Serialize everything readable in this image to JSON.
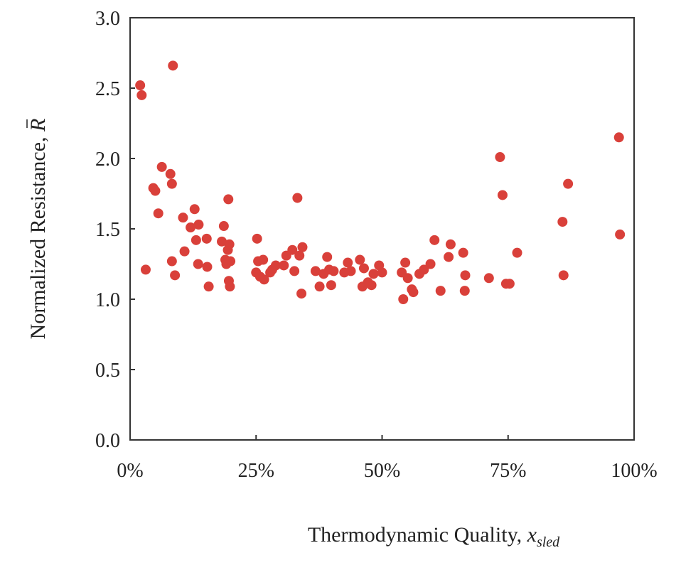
{
  "colors": {
    "marker": "#d9403a",
    "axis": "#333333",
    "text": "#222222"
  },
  "chart_data": {
    "type": "scatter",
    "title": "",
    "xlabel": "Thermodynamic Quality, ",
    "xlabel_var": "x",
    "xlabel_sub": "sled",
    "ylabel": "Normalized Resistance, ",
    "ylabel_var": "R",
    "xlim": [
      0,
      100
    ],
    "ylim": [
      0,
      3.0
    ],
    "x_ticks": [
      0,
      25,
      50,
      75,
      100
    ],
    "x_tick_labels": [
      "0%",
      "25%",
      "50%",
      "75%",
      "100%"
    ],
    "y_ticks": [
      0,
      0.5,
      1.0,
      1.5,
      2.0,
      2.5,
      3.0
    ],
    "y_tick_labels": [
      "0.0",
      "0.5",
      "1.0",
      "1.5",
      "2.0",
      "2.5",
      "3.0"
    ],
    "grid": false,
    "legend": "none",
    "series": [
      {
        "points": [
          [
            2.0,
            2.52
          ],
          [
            2.3,
            2.45
          ],
          [
            3.1,
            1.21
          ],
          [
            8.5,
            2.66
          ],
          [
            6.3,
            1.94
          ],
          [
            8.0,
            1.89
          ],
          [
            8.3,
            1.82
          ],
          [
            4.6,
            1.79
          ],
          [
            5.0,
            1.77
          ],
          [
            5.6,
            1.61
          ],
          [
            10.5,
            1.58
          ],
          [
            12.8,
            1.64
          ],
          [
            12.0,
            1.51
          ],
          [
            13.6,
            1.53
          ],
          [
            13.1,
            1.42
          ],
          [
            15.2,
            1.43
          ],
          [
            18.6,
            1.52
          ],
          [
            19.5,
            1.71
          ],
          [
            8.3,
            1.27
          ],
          [
            8.9,
            1.17
          ],
          [
            10.8,
            1.34
          ],
          [
            13.5,
            1.25
          ],
          [
            15.3,
            1.23
          ],
          [
            15.6,
            1.09
          ],
          [
            18.2,
            1.41
          ],
          [
            18.9,
            1.28
          ],
          [
            19.1,
            1.25
          ],
          [
            19.4,
            1.35
          ],
          [
            19.7,
            1.39
          ],
          [
            19.9,
            1.27
          ],
          [
            19.6,
            1.13
          ],
          [
            19.8,
            1.09
          ],
          [
            25.2,
            1.43
          ],
          [
            25.4,
            1.27
          ],
          [
            25.0,
            1.19
          ],
          [
            25.8,
            1.16
          ],
          [
            26.4,
            1.28
          ],
          [
            26.6,
            1.14
          ],
          [
            27.8,
            1.19
          ],
          [
            28.2,
            1.21
          ],
          [
            28.9,
            1.24
          ],
          [
            30.5,
            1.24
          ],
          [
            31.0,
            1.31
          ],
          [
            32.2,
            1.35
          ],
          [
            32.6,
            1.2
          ],
          [
            33.2,
            1.72
          ],
          [
            33.6,
            1.31
          ],
          [
            34.2,
            1.37
          ],
          [
            34.0,
            1.04
          ],
          [
            36.8,
            1.2
          ],
          [
            37.6,
            1.09
          ],
          [
            38.4,
            1.18
          ],
          [
            39.1,
            1.3
          ],
          [
            39.5,
            1.21
          ],
          [
            39.9,
            1.1
          ],
          [
            40.4,
            1.2
          ],
          [
            42.5,
            1.19
          ],
          [
            43.2,
            1.26
          ],
          [
            43.8,
            1.2
          ],
          [
            45.6,
            1.28
          ],
          [
            46.1,
            1.09
          ],
          [
            46.4,
            1.22
          ],
          [
            47.2,
            1.12
          ],
          [
            47.9,
            1.1
          ],
          [
            48.3,
            1.18
          ],
          [
            49.4,
            1.24
          ],
          [
            50.0,
            1.19
          ],
          [
            53.9,
            1.19
          ],
          [
            54.2,
            1.0
          ],
          [
            54.6,
            1.26
          ],
          [
            55.1,
            1.15
          ],
          [
            55.9,
            1.07
          ],
          [
            56.2,
            1.05
          ],
          [
            57.4,
            1.18
          ],
          [
            58.3,
            1.21
          ],
          [
            59.6,
            1.25
          ],
          [
            60.4,
            1.42
          ],
          [
            61.6,
            1.06
          ],
          [
            63.2,
            1.3
          ],
          [
            63.6,
            1.39
          ],
          [
            66.1,
            1.33
          ],
          [
            66.4,
            1.06
          ],
          [
            66.5,
            1.17
          ],
          [
            71.2,
            1.15
          ],
          [
            73.4,
            2.01
          ],
          [
            73.9,
            1.74
          ],
          [
            74.6,
            1.11
          ],
          [
            75.3,
            1.11
          ],
          [
            76.8,
            1.33
          ],
          [
            85.8,
            1.55
          ],
          [
            86.0,
            1.17
          ],
          [
            86.9,
            1.82
          ],
          [
            97.0,
            2.15
          ],
          [
            97.2,
            1.46
          ]
        ]
      }
    ]
  }
}
